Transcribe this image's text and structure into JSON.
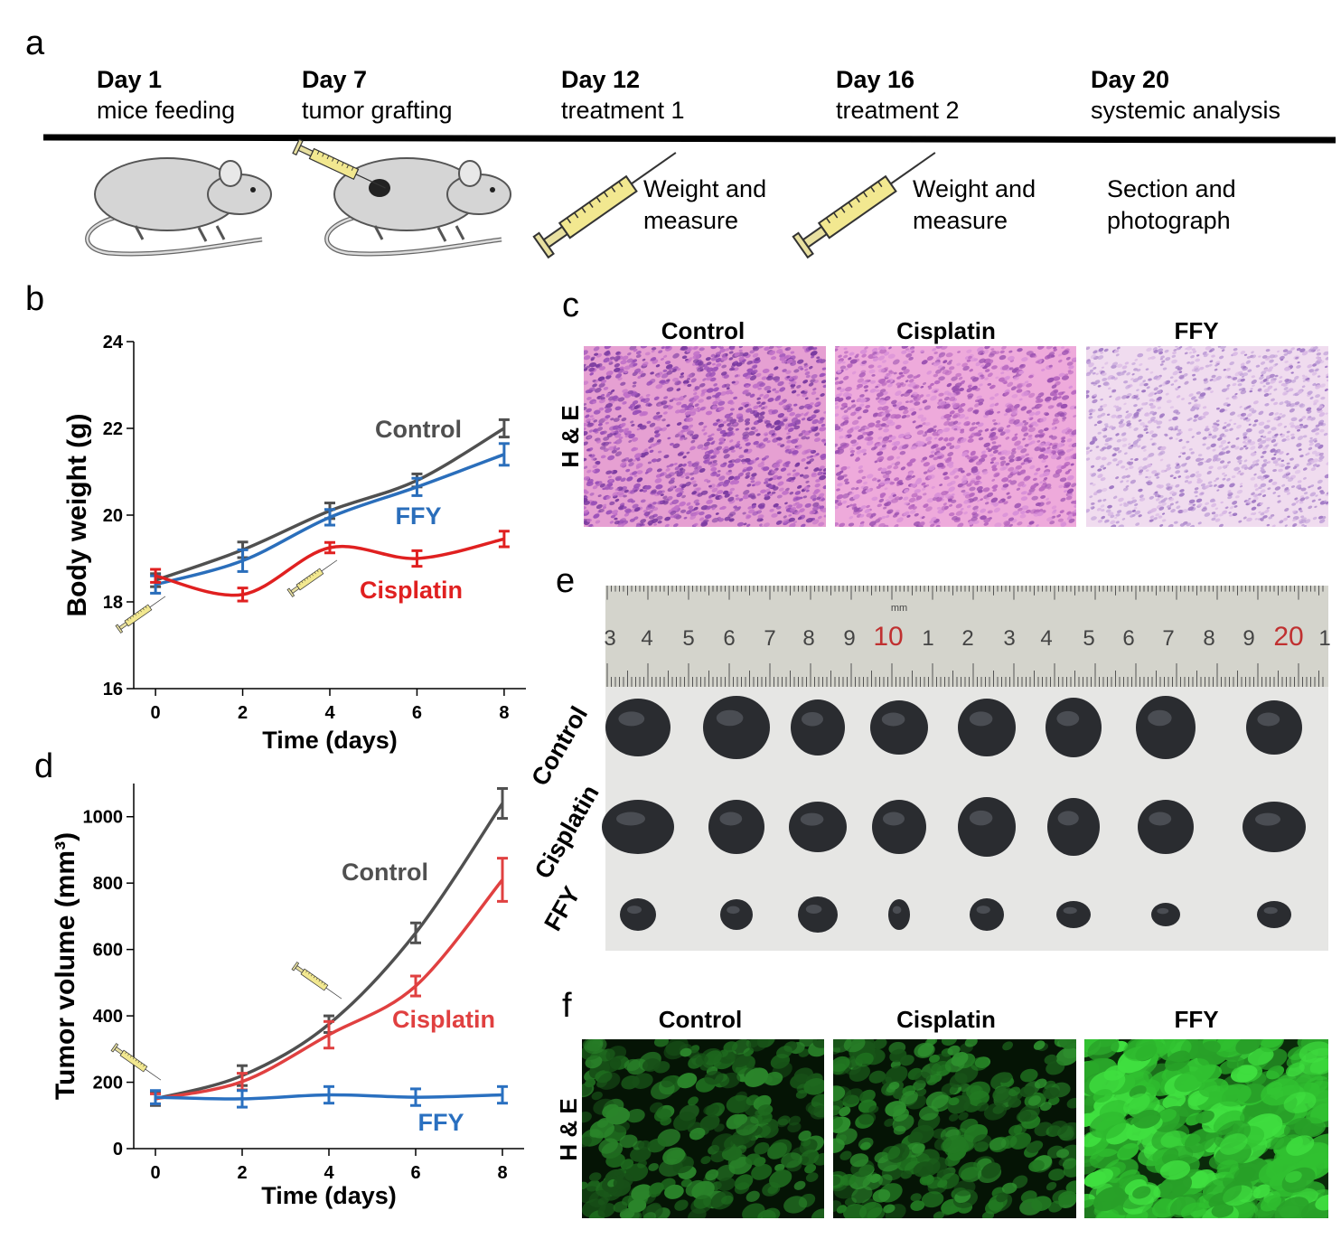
{
  "panel_a": {
    "label": "a",
    "timeline": [
      {
        "day": "Day 1",
        "event": "mice feeding"
      },
      {
        "day": "Day 7",
        "event": "tumor grafting"
      },
      {
        "day": "Day 12",
        "event": "treatment 1"
      },
      {
        "day": "Day 16",
        "event": "treatment 2"
      },
      {
        "day": "Day 20",
        "event": "systemic analysis"
      }
    ],
    "notes": [
      [
        "Weight and",
        "measure"
      ],
      [
        "Weight and",
        "measure"
      ],
      [
        "Section and",
        "photograph"
      ]
    ]
  },
  "chart_data": [
    {
      "type": "line",
      "panel": "b",
      "xlabel": "Time (days)",
      "ylabel": "Body weight (g)",
      "x": [
        0,
        2,
        4,
        6,
        8
      ],
      "xlim": [
        -0.5,
        8.5
      ],
      "xticks": [
        0,
        2,
        4,
        6,
        8
      ],
      "ylim": [
        16,
        24
      ],
      "yticks": [
        16,
        18,
        20,
        22,
        24
      ],
      "series": [
        {
          "name": "Control",
          "color": "#505050",
          "values": [
            18.5,
            19.2,
            20.1,
            20.8,
            22.0
          ],
          "errors": [
            0.15,
            0.18,
            0.18,
            0.15,
            0.2
          ]
        },
        {
          "name": "FFY",
          "color": "#2a6ebb",
          "values": [
            18.4,
            18.95,
            19.95,
            20.65,
            21.4
          ],
          "errors": [
            0.2,
            0.25,
            0.18,
            0.2,
            0.25
          ]
        },
        {
          "name": "Cisplatin",
          "color": "#e02020",
          "values": [
            18.6,
            18.17,
            19.25,
            19.0,
            19.45
          ],
          "errors": [
            0.15,
            0.15,
            0.12,
            0.18,
            0.18
          ]
        }
      ]
    },
    {
      "type": "line",
      "panel": "d",
      "xlabel": "Time (days)",
      "ylabel": "Tumor volume (mm³)",
      "x": [
        0,
        2,
        4,
        6,
        8
      ],
      "xlim": [
        -0.5,
        8.5
      ],
      "xticks": [
        0,
        2,
        4,
        6,
        8
      ],
      "ylim": [
        0,
        1100
      ],
      "yticks": [
        0,
        200,
        400,
        600,
        800,
        1000
      ],
      "series": [
        {
          "name": "Control",
          "color": "#505050",
          "values": [
            150,
            220,
            375,
            650,
            1040
          ],
          "errors": [
            20,
            30,
            25,
            30,
            45
          ]
        },
        {
          "name": "Cisplatin",
          "color": "#e04040",
          "values": [
            150,
            202,
            343,
            490,
            810
          ],
          "errors": [
            15,
            25,
            40,
            30,
            65
          ]
        },
        {
          "name": "FFY",
          "color": "#2a70c0",
          "values": [
            155,
            150,
            162,
            155,
            162
          ],
          "errors": [
            20,
            25,
            25,
            25,
            25
          ]
        }
      ]
    }
  ],
  "panel_c": {
    "label": "c",
    "columns": [
      "Control",
      "Cisplatin",
      "FFY"
    ],
    "row_label": "H & E"
  },
  "panel_e": {
    "label": "e",
    "ruler_labels": [
      "3",
      "4",
      "5",
      "6",
      "7",
      "8",
      "9",
      "10",
      "1",
      "2",
      "3",
      "4",
      "5",
      "6",
      "7",
      "8",
      "9",
      "20",
      "1"
    ],
    "ruler_unit": "mm",
    "rows": [
      "Control",
      "Cisplatin",
      "FFY"
    ]
  },
  "panel_f": {
    "label": "f",
    "columns": [
      "Control",
      "Cisplatin",
      "FFY"
    ],
    "row_label": "H & E"
  }
}
